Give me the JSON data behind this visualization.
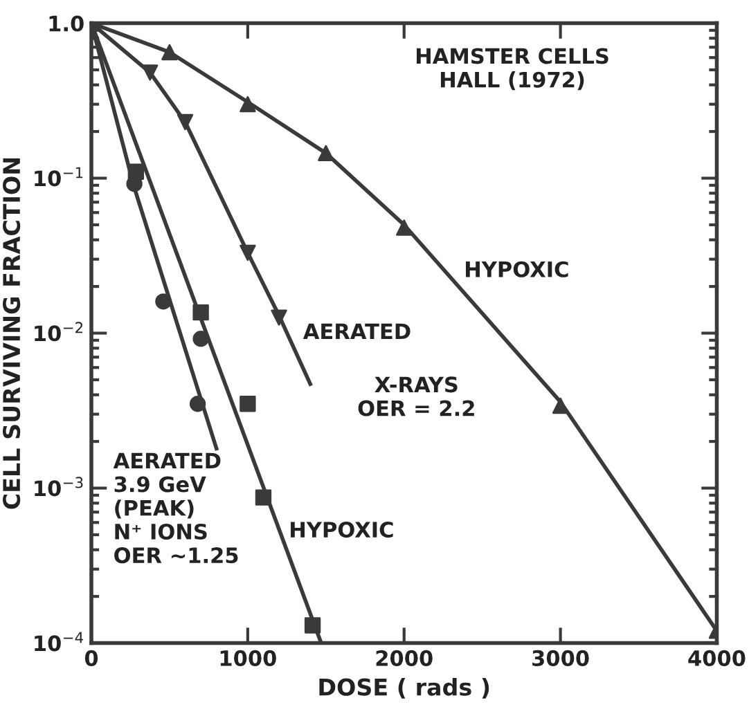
{
  "chart_data": {
    "type": "line",
    "xlabel": "DOSE ( rads )",
    "ylabel": "CELL SURVIVING FRACTION",
    "log": "y",
    "xlim": [
      0,
      4000
    ],
    "ylim": [
      0.0001,
      1.0
    ],
    "xticks": [
      0,
      1000,
      2000,
      3000,
      4000
    ],
    "yticks": [
      {
        "value": 1.0,
        "label": "1.0"
      },
      {
        "value": 0.1,
        "label": "10$^{−1}$"
      },
      {
        "value": 0.01,
        "label": "10$^{−2}$"
      },
      {
        "value": 0.001,
        "label": "10$^{−3}$"
      },
      {
        "value": 0.0001,
        "label": "10$^{−4}$"
      }
    ],
    "grid": false,
    "legend": false,
    "series": [
      {
        "color": "#3a3a3a",
        "marker": "none",
        "line_style": "solid",
        "x": [
          0,
          500,
          1000,
          1500,
          2000,
          3000,
          4000
        ],
        "values": [
          1.0,
          0.65,
          0.31,
          0.145,
          0.05,
          0.0036,
          0.00012
        ]
      },
      {
        "color": "#3a3a3a",
        "marker": "none",
        "line_style": "solid",
        "x": [
          0,
          375,
          600,
          1000,
          1200,
          1400
        ],
        "values": [
          1.0,
          0.48,
          0.23,
          0.033,
          0.013,
          0.0047
        ]
      },
      {
        "color": "#3a3a3a",
        "marker": "none",
        "line_style": "solid",
        "x": [
          0,
          270,
          800
        ],
        "values": [
          1.0,
          0.09,
          0.0018
        ]
      },
      {
        "color": "#3a3a3a",
        "marker": "none",
        "line_style": "solid",
        "x": [
          0,
          1470
        ],
        "values": [
          1.0,
          0.0001
        ]
      },
      {
        "type": "scatter",
        "color": "#3a3a3a",
        "marker": "triangle",
        "x": [
          500,
          1000,
          1500,
          2000,
          3000,
          4000
        ],
        "values": [
          0.65,
          0.3,
          0.145,
          0.048,
          0.0034,
          0.00012
        ]
      },
      {
        "type": "scatter",
        "color": "#3a3a3a",
        "marker": "triangle_down",
        "x": [
          375,
          600,
          1000,
          1200
        ],
        "values": [
          0.48,
          0.23,
          0.033,
          0.0126
        ]
      },
      {
        "type": "scatter",
        "color": "#3a3a3a",
        "marker": "circle",
        "x": [
          275,
          460,
          700,
          680
        ],
        "values": [
          0.092,
          0.016,
          0.0092,
          0.0035
        ]
      },
      {
        "type": "scatter",
        "color": "#3a3a3a",
        "marker": "square",
        "x": [
          285,
          700,
          1000,
          1100,
          1415
        ],
        "values": [
          0.11,
          0.0136,
          0.0035,
          0.00087,
          0.00013
        ]
      }
    ],
    "annotations": [
      "HAMSTER CELLS\nHALL (1972)",
      "HYPOXIC",
      "AERATED",
      "X-RAYS\nOER = 2.2",
      "AERATED\n3.9 GeV\n(PEAK)\nN⁺ IONS\nOER ~1.25",
      "HYPOXIC"
    ]
  }
}
